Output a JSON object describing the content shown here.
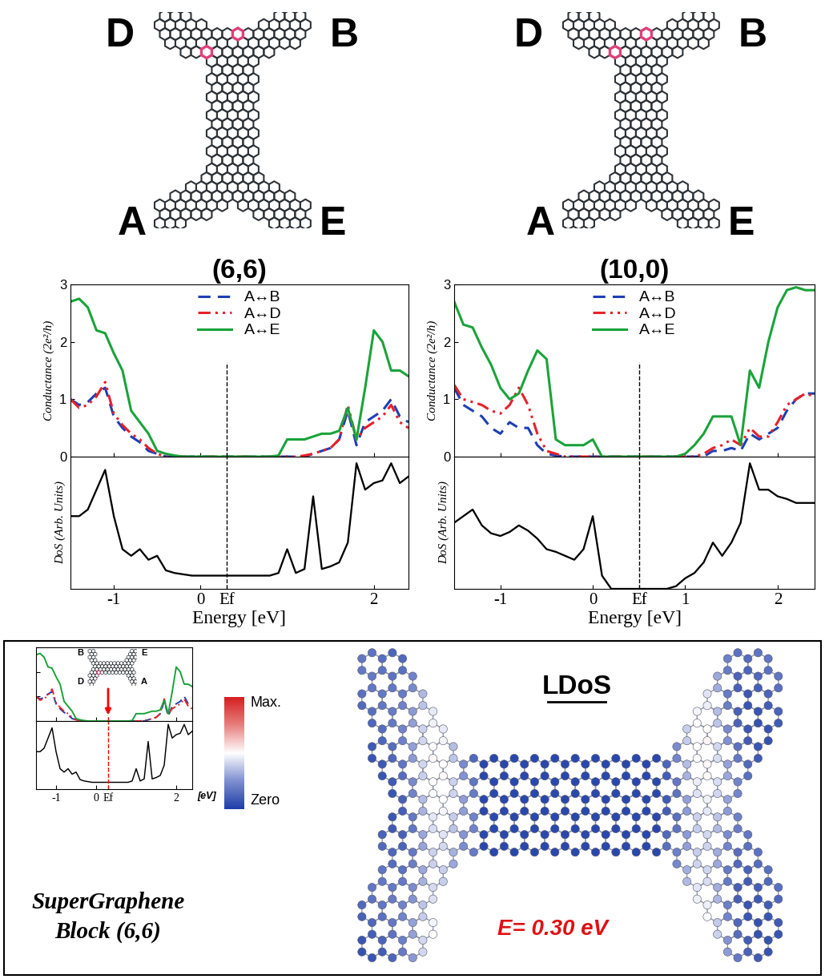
{
  "chart_data": [
    {
      "type": "line",
      "title": "(6,6)",
      "ylabel": "Conductance (2e²/h)",
      "x": [
        -1.5,
        -1.4,
        -1.3,
        -1.2,
        -1.1,
        -1.0,
        -0.9,
        -0.8,
        -0.7,
        -0.6,
        -0.5,
        -0.4,
        -0.3,
        -0.2,
        -0.1,
        0.0,
        0.1,
        0.2,
        0.3,
        0.4,
        0.5,
        0.6,
        0.7,
        0.8,
        0.9,
        1.0,
        1.1,
        1.2,
        1.3,
        1.4,
        1.5,
        1.6,
        1.7,
        1.8,
        1.9,
        2.0,
        2.1,
        2.2,
        2.3,
        2.4
      ],
      "series": [
        {
          "name": "A↔B",
          "color": "#1f3fb4",
          "line_style": "dashed",
          "values": [
            1.0,
            0.9,
            0.95,
            1.1,
            1.2,
            0.7,
            0.5,
            0.35,
            0.25,
            0.1,
            0.05,
            0,
            0,
            0,
            0,
            0,
            0,
            0,
            0,
            0,
            0,
            0,
            0,
            0,
            0,
            0,
            0,
            0,
            0.05,
            0.1,
            0.15,
            0.3,
            0.8,
            0.2,
            0.6,
            0.7,
            0.8,
            1.0,
            0.7,
            0.6
          ]
        },
        {
          "name": "A↔D",
          "color": "#e8202a",
          "line_style": "dashdotdot",
          "values": [
            1.0,
            0.85,
            0.9,
            1.05,
            1.3,
            0.75,
            0.55,
            0.4,
            0.3,
            0.15,
            0.05,
            0,
            0,
            0,
            0,
            0,
            0,
            0,
            0,
            0,
            0,
            0,
            0,
            0,
            0,
            0,
            0,
            0.02,
            0.05,
            0.1,
            0.15,
            0.3,
            0.9,
            0.3,
            0.5,
            0.6,
            0.7,
            0.9,
            0.6,
            0.5
          ]
        },
        {
          "name": "A↔E",
          "color": "#1aa33a",
          "line_style": "solid",
          "values": [
            2.7,
            2.75,
            2.6,
            2.2,
            2.15,
            1.8,
            1.5,
            0.8,
            0.6,
            0.4,
            0.1,
            0.05,
            0.02,
            0,
            0,
            0,
            0,
            0,
            0,
            0,
            0,
            0,
            0,
            0,
            0.02,
            0.3,
            0.3,
            0.3,
            0.35,
            0.4,
            0.4,
            0.45,
            0.85,
            0.3,
            1.2,
            2.2,
            2.0,
            1.5,
            1.5,
            1.4
          ]
        }
      ],
      "xlim": [
        -1.5,
        2.4
      ],
      "ylim": [
        0,
        3
      ],
      "xticks": [
        -1,
        0,
        {
          "value": 0.3,
          "label": "Ef"
        },
        2
      ],
      "yticks": [
        0,
        1,
        2,
        3
      ],
      "fermi_energy": 0.3,
      "legend": "upper center",
      "tick_labels": "y"
    },
    {
      "type": "line",
      "ylabel": "DoS (Arb. Units)",
      "xlabel": "Energy [eV]",
      "x": [
        -1.5,
        -1.4,
        -1.3,
        -1.2,
        -1.1,
        -1.0,
        -0.9,
        -0.8,
        -0.7,
        -0.6,
        -0.5,
        -0.4,
        -0.3,
        -0.2,
        -0.1,
        0.0,
        0.1,
        0.2,
        0.3,
        0.4,
        0.5,
        0.6,
        0.7,
        0.8,
        0.9,
        1.0,
        1.1,
        1.2,
        1.3,
        1.4,
        1.5,
        1.6,
        1.7,
        1.8,
        1.9,
        2.0,
        2.1,
        2.2,
        2.3,
        2.4
      ],
      "values": [
        0.55,
        0.55,
        0.6,
        0.75,
        0.9,
        0.55,
        0.3,
        0.25,
        0.3,
        0.22,
        0.25,
        0.14,
        0.12,
        0.11,
        0.1,
        0.1,
        0.1,
        0.1,
        0.1,
        0.1,
        0.1,
        0.1,
        0.1,
        0.1,
        0.12,
        0.3,
        0.12,
        0.15,
        0.7,
        0.15,
        0.17,
        0.2,
        0.35,
        0.95,
        0.75,
        0.8,
        0.82,
        0.95,
        0.8,
        0.85
      ],
      "color": "#000000",
      "xlim": [
        -1.5,
        2.4
      ],
      "ylim": [
        0,
        1
      ],
      "xticks": [
        -1,
        0,
        {
          "value": 0.3,
          "label": "Ef"
        },
        2
      ],
      "yticks": [],
      "fermi_energy": 0.3,
      "tick_labels": "x"
    },
    {
      "type": "line",
      "title": "(10,0)",
      "ylabel": "Conductance (2e²/h)",
      "x": [
        -1.5,
        -1.4,
        -1.3,
        -1.2,
        -1.1,
        -1.0,
        -0.9,
        -0.8,
        -0.7,
        -0.6,
        -0.5,
        -0.4,
        -0.3,
        -0.2,
        -0.1,
        0.0,
        0.1,
        0.2,
        0.3,
        0.4,
        0.5,
        0.6,
        0.7,
        0.8,
        0.9,
        1.0,
        1.1,
        1.2,
        1.3,
        1.4,
        1.5,
        1.6,
        1.7,
        1.8,
        1.9,
        2.0,
        2.1,
        2.2,
        2.3,
        2.4
      ],
      "series": [
        {
          "name": "A↔B",
          "color": "#1f3fb4",
          "line_style": "dashed",
          "values": [
            1.2,
            0.9,
            0.8,
            0.7,
            0.5,
            0.4,
            0.6,
            0.5,
            0.5,
            0.2,
            0.05,
            0.02,
            0,
            0,
            0,
            0,
            0,
            0,
            0,
            0,
            0,
            0,
            0,
            0,
            0,
            0,
            0,
            0,
            0.1,
            0.1,
            0.15,
            0.1,
            0.4,
            0.3,
            0.4,
            0.5,
            0.8,
            1.0,
            1.1,
            1.1
          ]
        },
        {
          "name": "A↔D",
          "color": "#e8202a",
          "line_style": "dashdotdot",
          "values": [
            1.25,
            1.0,
            0.95,
            0.9,
            0.8,
            0.75,
            0.9,
            1.2,
            0.9,
            0.4,
            0.1,
            0.05,
            0,
            0,
            0,
            0,
            0,
            0,
            0,
            0,
            0,
            0,
            0,
            0,
            0,
            0,
            0,
            0.05,
            0.15,
            0.2,
            0.3,
            0.2,
            0.5,
            0.35,
            0.35,
            0.6,
            0.9,
            1.0,
            1.1,
            1.05
          ]
        },
        {
          "name": "A↔E",
          "color": "#1aa33a",
          "line_style": "solid",
          "values": [
            2.7,
            2.3,
            2.25,
            1.9,
            1.6,
            1.2,
            1.0,
            1.1,
            1.5,
            1.85,
            1.7,
            0.3,
            0.2,
            0.2,
            0.2,
            0.3,
            0,
            0,
            0,
            0,
            0,
            0,
            0,
            0,
            0,
            0.05,
            0.2,
            0.4,
            0.7,
            0.7,
            0.7,
            0.2,
            1.5,
            1.2,
            2.0,
            2.6,
            2.9,
            2.95,
            2.9,
            2.9
          ]
        }
      ],
      "xlim": [
        -1.5,
        2.4
      ],
      "ylim": [
        0,
        3
      ],
      "xticks": [
        -1,
        0,
        {
          "value": 0.5,
          "label": "Ef"
        },
        1,
        2
      ],
      "yticks": [
        0,
        1,
        2,
        3
      ],
      "fermi_energy": 0.5,
      "legend": "upper center",
      "tick_labels": "y"
    },
    {
      "type": "line",
      "ylabel": "DoS (Arb. Units)",
      "xlabel": "Energy [eV]",
      "x": [
        -1.5,
        -1.4,
        -1.3,
        -1.2,
        -1.1,
        -1.0,
        -0.9,
        -0.8,
        -0.7,
        -0.6,
        -0.5,
        -0.4,
        -0.3,
        -0.2,
        -0.1,
        0.0,
        0.1,
        0.2,
        0.3,
        0.4,
        0.5,
        0.6,
        0.7,
        0.8,
        0.9,
        1.0,
        1.1,
        1.2,
        1.3,
        1.4,
        1.5,
        1.6,
        1.7,
        1.8,
        1.9,
        2.0,
        2.1,
        2.2,
        2.3,
        2.4
      ],
      "values": [
        0.5,
        0.55,
        0.6,
        0.48,
        0.42,
        0.4,
        0.43,
        0.48,
        0.44,
        0.38,
        0.3,
        0.28,
        0.25,
        0.22,
        0.3,
        0.55,
        0.1,
        0,
        0,
        0,
        0,
        0,
        0,
        0,
        0.02,
        0.08,
        0.12,
        0.2,
        0.35,
        0.25,
        0.35,
        0.5,
        0.95,
        0.75,
        0.75,
        0.7,
        0.68,
        0.65,
        0.65,
        0.65
      ],
      "color": "#000000",
      "xlim": [
        -1.5,
        2.4
      ],
      "ylim": [
        0,
        1
      ],
      "xticks": [
        -1,
        0,
        {
          "value": 0.5,
          "label": "Ef"
        },
        1,
        2
      ],
      "yticks": [],
      "fermi_energy": 0.5,
      "tick_labels": "x"
    },
    {
      "type": "line",
      "x": [
        -1.5,
        -1.4,
        -1.3,
        -1.2,
        -1.1,
        -1.0,
        -0.9,
        -0.8,
        -0.7,
        -0.6,
        -0.5,
        -0.4,
        -0.3,
        -0.2,
        -0.1,
        0.0,
        0.1,
        0.2,
        0.3,
        0.4,
        0.5,
        0.6,
        0.7,
        0.8,
        0.9,
        1.0,
        1.1,
        1.2,
        1.3,
        1.4,
        1.5,
        1.6,
        1.7,
        1.8,
        1.9,
        2.0,
        2.1,
        2.2,
        2.3,
        2.4
      ],
      "series": [
        {
          "color": "#1f3fb4",
          "line_style": "dashed",
          "values": [
            1.0,
            0.9,
            0.95,
            1.1,
            1.2,
            0.7,
            0.5,
            0.35,
            0.25,
            0.1,
            0.05,
            0,
            0,
            0,
            0,
            0,
            0,
            0,
            0,
            0,
            0,
            0,
            0,
            0,
            0,
            0,
            0,
            0,
            0.05,
            0.1,
            0.15,
            0.3,
            0.8,
            0.2,
            0.6,
            0.7,
            0.8,
            1.0,
            0.7,
            0.6
          ]
        },
        {
          "color": "#e8202a",
          "line_style": "dashdotdot",
          "values": [
            1.0,
            0.85,
            0.9,
            1.05,
            1.3,
            0.75,
            0.55,
            0.4,
            0.3,
            0.15,
            0.05,
            0,
            0,
            0,
            0,
            0,
            0,
            0,
            0,
            0,
            0,
            0,
            0,
            0,
            0,
            0,
            0,
            0.02,
            0.05,
            0.1,
            0.15,
            0.3,
            0.9,
            0.3,
            0.5,
            0.6,
            0.7,
            0.9,
            0.6,
            0.5
          ]
        },
        {
          "color": "#1aa33a",
          "line_style": "solid",
          "values": [
            2.7,
            2.75,
            2.6,
            2.2,
            2.15,
            1.8,
            1.5,
            0.8,
            0.6,
            0.4,
            0.1,
            0.05,
            0.02,
            0,
            0,
            0,
            0,
            0,
            0,
            0,
            0,
            0,
            0,
            0,
            0.02,
            0.3,
            0.3,
            0.3,
            0.35,
            0.4,
            0.4,
            0.45,
            0.85,
            0.3,
            1.2,
            2.2,
            2.0,
            1.5,
            1.5,
            1.4
          ]
        }
      ],
      "xlim": [
        -1.5,
        2.4
      ],
      "ylim": [
        0,
        3
      ],
      "xticks": [
        -1,
        0,
        {
          "value": 0.3,
          "label": "Ef"
        },
        2
      ],
      "yticks": [
        0,
        1,
        2,
        3
      ],
      "fermi_energy": 0.3,
      "tick_labels": false
    },
    {
      "type": "line",
      "xlabel": "[eV]",
      "x": [
        -1.5,
        -1.4,
        -1.3,
        -1.2,
        -1.1,
        -1.0,
        -0.9,
        -0.8,
        -0.7,
        -0.6,
        -0.5,
        -0.4,
        -0.3,
        -0.2,
        -0.1,
        0.0,
        0.1,
        0.2,
        0.3,
        0.4,
        0.5,
        0.6,
        0.7,
        0.8,
        0.9,
        1.0,
        1.1,
        1.2,
        1.3,
        1.4,
        1.5,
        1.6,
        1.7,
        1.8,
        1.9,
        2.0,
        2.1,
        2.2,
        2.3,
        2.4
      ],
      "values": [
        0.55,
        0.55,
        0.6,
        0.75,
        0.9,
        0.55,
        0.3,
        0.25,
        0.3,
        0.22,
        0.25,
        0.14,
        0.12,
        0.11,
        0.1,
        0.1,
        0.1,
        0.1,
        0.1,
        0.1,
        0.1,
        0.1,
        0.1,
        0.1,
        0.12,
        0.3,
        0.12,
        0.15,
        0.7,
        0.15,
        0.17,
        0.2,
        0.35,
        0.95,
        0.75,
        0.8,
        0.82,
        0.95,
        0.8,
        0.85
      ],
      "color": "#000000",
      "xlim": [
        -1.5,
        2.4
      ],
      "ylim": [
        0,
        1
      ],
      "xticks": [
        -1,
        0,
        {
          "value": 0.3,
          "label": "Ef"
        },
        2
      ],
      "yticks": [],
      "fermi_energy": 0.3,
      "tick_labels": "x"
    }
  ],
  "structure_labels": [
    [
      "D",
      "B",
      "A",
      "E"
    ],
    [
      "D",
      "B",
      "A",
      "E"
    ]
  ],
  "block_panel": {
    "title": "SuperGraphene\nBlock (6,6)",
    "inset_structure_labels": [
      "B",
      "E",
      "D",
      "A"
    ],
    "colorbar_labels": [
      "Max.",
      "Zero"
    ],
    "ldos_title": "LDoS",
    "energy_label": "E= 0.30 eV"
  }
}
